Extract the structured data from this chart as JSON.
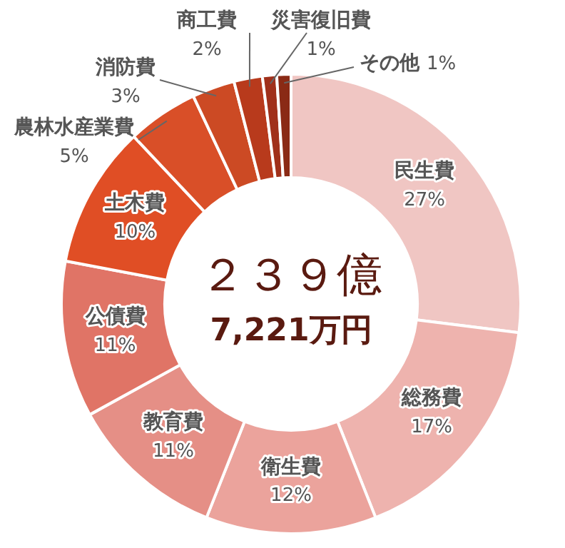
{
  "chart_data": {
    "type": "donut",
    "categories": [
      "民生費",
      "総務費",
      "衛生費",
      "教育費",
      "公債費",
      "土木費",
      "農林水産業費",
      "消防費",
      "商工費",
      "災害復旧費",
      "その他"
    ],
    "values": [
      27,
      17,
      12,
      11,
      11,
      10,
      5,
      3,
      2,
      1,
      1
    ],
    "value_labels": [
      "27%",
      "17%",
      "12%",
      "11%",
      "11%",
      "10%",
      "5%",
      "3%",
      "2%",
      "1%",
      "1%"
    ],
    "colors": [
      "#f0c6c3",
      "#eeb3ae",
      "#eba39c",
      "#e58f86",
      "#e07466",
      "#e04e25",
      "#d94f28",
      "#cc4a24",
      "#b83a1c",
      "#a0301a",
      "#8a2a15"
    ],
    "legend": false,
    "annotations": [
      "２３９億",
      "7,221万円"
    ]
  }
}
